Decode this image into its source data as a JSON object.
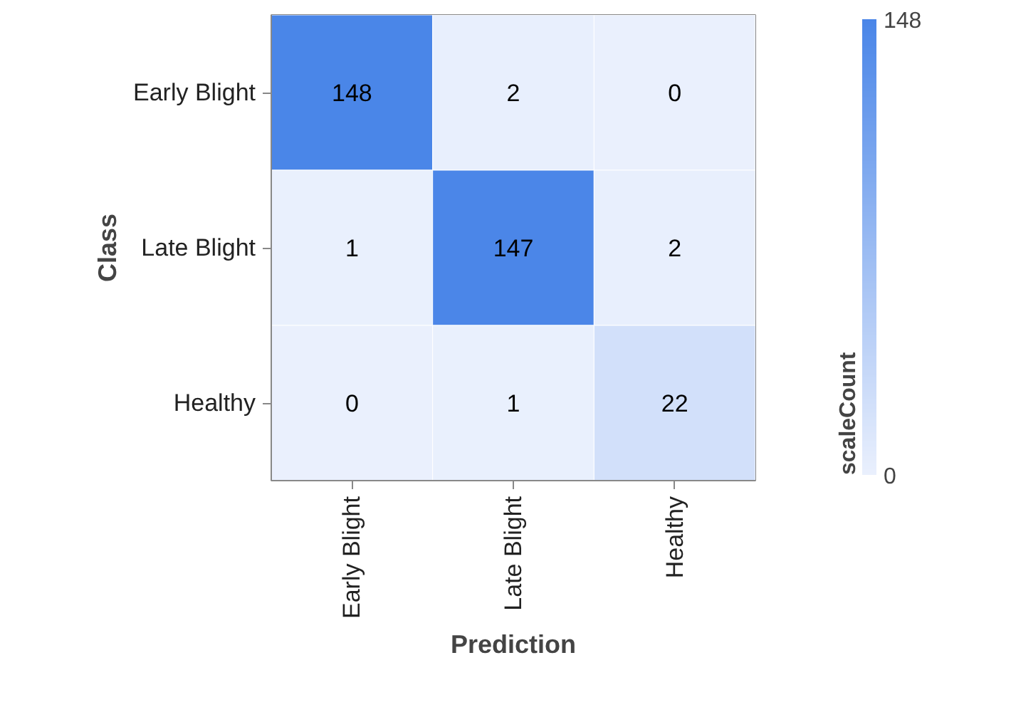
{
  "chart_data": {
    "type": "heatmap",
    "xlabel": "Prediction",
    "ylabel": "Class",
    "clabel": "scaleCount",
    "categories": [
      "Early Blight",
      "Late Blight",
      "Healthy"
    ],
    "y_categories": [
      "Early Blight",
      "Late Blight",
      "Healthy"
    ],
    "cells": [
      [
        148,
        2,
        0
      ],
      [
        1,
        147,
        2
      ],
      [
        0,
        1,
        22
      ]
    ],
    "clim": [
      0,
      148
    ],
    "cticks": [
      0,
      148
    ],
    "data_labels": true
  }
}
